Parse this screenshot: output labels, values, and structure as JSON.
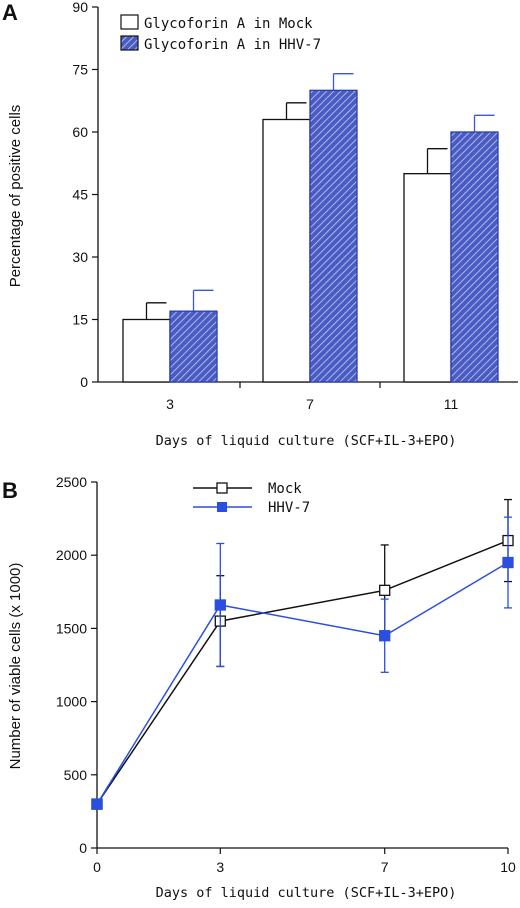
{
  "chart_data": [
    {
      "panel": "A",
      "type": "bar",
      "categories": [
        "3",
        "7",
        "11"
      ],
      "series": [
        {
          "name": "Glycoforin A in Mock",
          "values": [
            15,
            63,
            50
          ],
          "errors": [
            4,
            4,
            6
          ],
          "fill": "#ffffff"
        },
        {
          "name": "Glycoforin A in HHV-7",
          "values": [
            17,
            70,
            60
          ],
          "errors": [
            5,
            4,
            4
          ],
          "fill": "#4a5bc4",
          "pattern": "diagonal-hatch"
        }
      ],
      "xlabel": "Days of liquid culture (SCF+IL-3+EPO)",
      "ylabel": "Percentage of positive cells",
      "ylim": [
        0,
        90
      ],
      "yticks": [
        0,
        15,
        30,
        45,
        60,
        75,
        90
      ],
      "legend": "top-left",
      "grid": false
    },
    {
      "panel": "B",
      "type": "line",
      "x": [
        0,
        3,
        7,
        10
      ],
      "xticks": [
        0,
        3,
        7,
        10
      ],
      "series": [
        {
          "name": "Mock",
          "values": [
            300,
            1550,
            1760,
            2100
          ],
          "errors": [
            0,
            310,
            310,
            280
          ],
          "color": "#111111",
          "marker": "open-square"
        },
        {
          "name": "HHV-7",
          "values": [
            300,
            1660,
            1450,
            1950
          ],
          "errors": [
            0,
            420,
            250,
            310
          ],
          "color": "#2a4fe0",
          "marker": "filled-square"
        }
      ],
      "xlabel": "Days of liquid culture (SCF+IL-3+EPO)",
      "ylabel": "Number of viable cells (x 1000)",
      "ylim": [
        0,
        2500
      ],
      "yticks": [
        0,
        500,
        1000,
        1500,
        2000,
        2500
      ],
      "xlim": [
        0,
        10
      ],
      "legend": "top-center",
      "grid": false
    }
  ]
}
